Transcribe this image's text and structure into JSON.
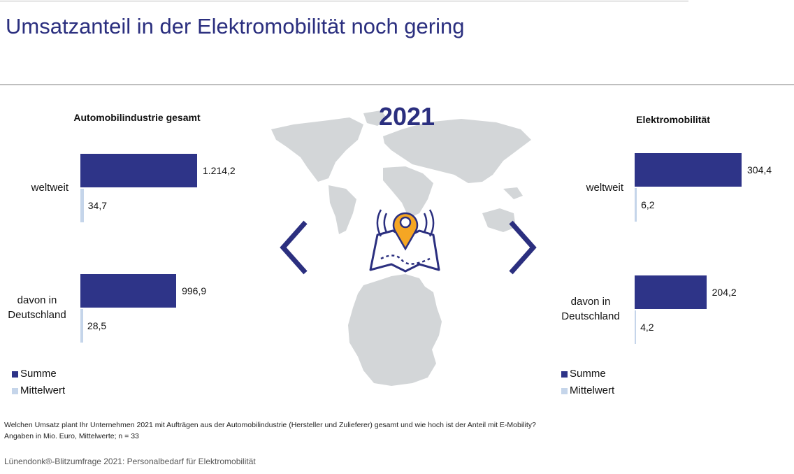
{
  "title": "Umsatzanteil in der Elektromobilität noch gering",
  "year": "2021",
  "chart_data": [
    {
      "type": "hbar",
      "title": "Automobilindustrie gesamt",
      "categories": [
        "weltweit",
        "davon in Deutschland"
      ],
      "series": [
        {
          "name": "Summe",
          "color": "#2e3488",
          "values": [
            1214.2,
            996.9
          ],
          "value_labels": [
            "1.214,2",
            "996,9"
          ]
        },
        {
          "name": "Mittelwert",
          "color": "#c5d5ea",
          "values": [
            34.7,
            28.5
          ],
          "value_labels": [
            "34,7",
            "28,5"
          ]
        }
      ]
    },
    {
      "type": "hbar",
      "title": "Elektromobilität",
      "categories": [
        "weltweit",
        "davon in Deutschland"
      ],
      "series": [
        {
          "name": "Summe",
          "color": "#2e3488",
          "values": [
            304.4,
            204.2
          ],
          "value_labels": [
            "304,4",
            "204,2"
          ]
        },
        {
          "name": "Mittelwert",
          "color": "#c5d5ea",
          "values": [
            6.2,
            4.2
          ],
          "value_labels": [
            "6,2",
            "4,2"
          ]
        }
      ]
    }
  ],
  "notes": [
    "Welchen Umsatz plant Ihr Unternehmen 2021 mit Aufträgen aus der Automobilindustrie (Hersteller und Zulieferer) gesamt und wie hoch ist der Anteil mit E-Mobility?",
    "Angaben in Mio. Euro, Mittelwerte; n = 33"
  ],
  "source": "Lünendonk®-Blitzumfrage 2021: Personalbedarf für Elektromobilität"
}
